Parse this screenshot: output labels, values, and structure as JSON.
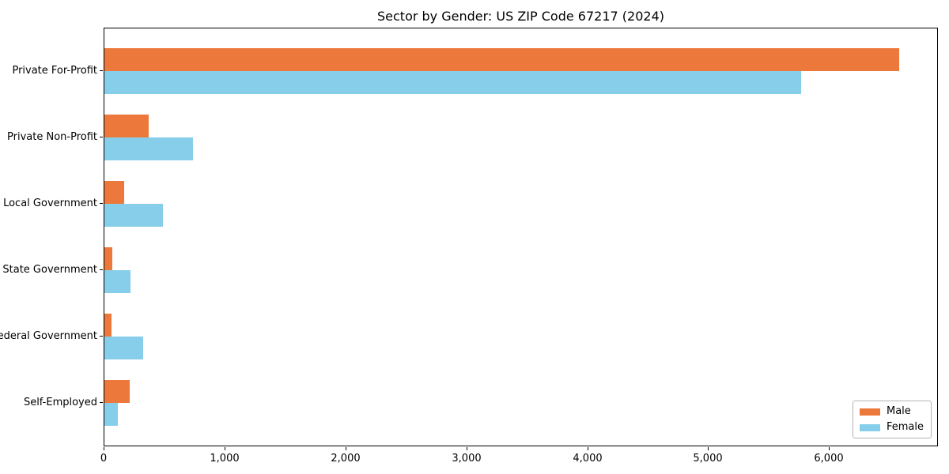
{
  "chart_data": {
    "type": "bar",
    "orientation": "horizontal",
    "title": "Sector by Gender: US ZIP Code 67217 (2024)",
    "categories": [
      "Private For-Profit",
      "Private Non-Profit",
      "Local Government",
      "State Government",
      "Federal Government",
      "Self-Employed"
    ],
    "series": [
      {
        "name": "Male",
        "color": "#ec793b",
        "values": [
          6575,
          365,
          165,
          65,
          60,
          210
        ]
      },
      {
        "name": "Female",
        "color": "#87ceeb",
        "values": [
          5765,
          730,
          485,
          215,
          320,
          110
        ]
      }
    ],
    "xlabel": "",
    "ylabel": "",
    "xlim": [
      0,
      6900
    ],
    "xticks": [
      0,
      1000,
      2000,
      3000,
      4000,
      5000,
      6000
    ],
    "xtick_labels": [
      "0",
      "1,000",
      "2,000",
      "3,000",
      "4,000",
      "5,000",
      "6,000"
    ],
    "legend_position": "lower right",
    "grid": false
  }
}
